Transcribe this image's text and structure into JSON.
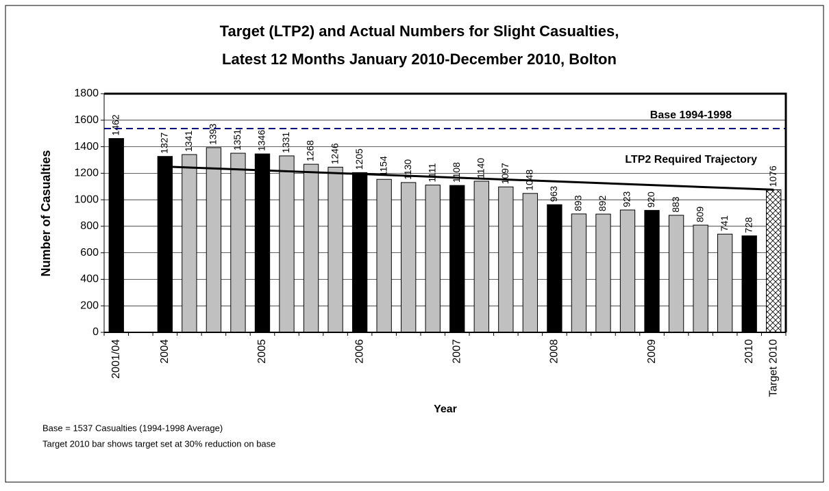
{
  "chart_data": {
    "type": "bar",
    "title": [
      "Target (LTP2) and Actual Numbers for Slight Casualties,",
      "Latest 12 Months January 2010-December 2010, Bolton"
    ],
    "x_label": "Year",
    "y_label": "Number of Casualties",
    "categories": [
      "2001/04",
      null,
      "2004",
      null,
      null,
      null,
      "2005",
      null,
      null,
      null,
      "2006",
      null,
      null,
      null,
      "2007",
      null,
      null,
      null,
      "2008",
      null,
      null,
      null,
      "2009",
      null,
      null,
      null,
      "2010",
      "Target 2010"
    ],
    "values": [
      1462,
      null,
      1327,
      1341,
      1393,
      1351,
      1346,
      1331,
      1268,
      1246,
      1205,
      1154,
      1130,
      1111,
      1108,
      1140,
      1097,
      1048,
      963,
      893,
      892,
      923,
      920,
      883,
      809,
      741,
      728,
      1076
    ],
    "colors": [
      "#000000",
      null,
      "#000000",
      "#c0c0c0",
      "#c0c0c0",
      "#c0c0c0",
      "#000000",
      "#c0c0c0",
      "#c0c0c0",
      "#c0c0c0",
      "#000000",
      "#c0c0c0",
      "#c0c0c0",
      "#c0c0c0",
      "#000000",
      "#c0c0c0",
      "#c0c0c0",
      "#c0c0c0",
      "#000000",
      "#c0c0c0",
      "#c0c0c0",
      "#c0c0c0",
      "#000000",
      "#c0c0c0",
      "#c0c0c0",
      "#c0c0c0",
      "#000000",
      "hatch"
    ],
    "base_line": {
      "name": "Base 1994-1998",
      "value": 1537,
      "color": "#000080"
    },
    "trajectory": {
      "name": "LTP2 Required Trajectory",
      "color": "#000000",
      "values": [
        null,
        null,
        1250,
        null,
        null,
        null,
        null,
        null,
        null,
        null,
        null,
        null,
        null,
        null,
        null,
        null,
        null,
        null,
        null,
        null,
        null,
        null,
        null,
        null,
        null,
        null,
        null,
        1076
      ]
    },
    "ylim": [
      0,
      1800
    ],
    "yticks": [
      0,
      200,
      400,
      600,
      800,
      1000,
      1200,
      1400,
      1600,
      1800
    ],
    "grid": true,
    "notes": [
      "Base = 1537 Casualties (1994-1998 Average)",
      "Target 2010 bar shows target set at 30% reduction on base"
    ]
  }
}
